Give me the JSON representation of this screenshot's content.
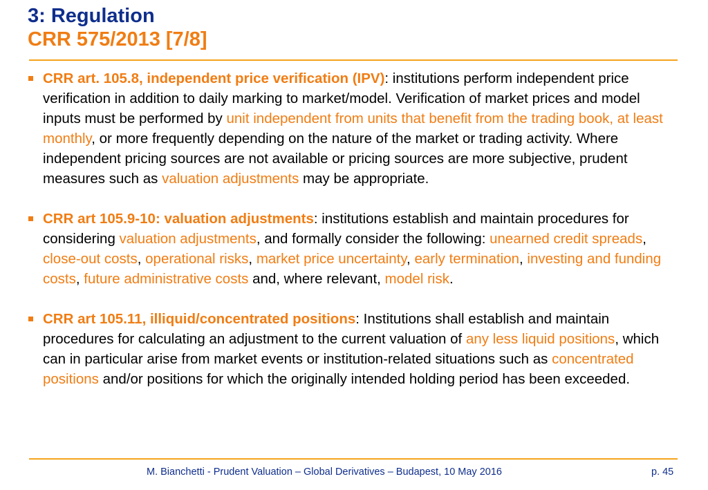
{
  "header": {
    "title": "3: Regulation",
    "subtitle": "CRR 575/2013 [7/8]"
  },
  "bullets": [
    {
      "parts": [
        {
          "text": "CRR art. 105.8, independent price verification (IPV)",
          "style": "bold-orange"
        },
        {
          "text": ": institutions perform independent price verification in addition to daily marking to market/model. Verification of market prices and model inputs must be performed by ",
          "style": "normal"
        },
        {
          "text": "unit independent from units that benefit from the trading book, at least monthly",
          "style": "orange"
        },
        {
          "text": ", or more frequently depending on the nature of the market or trading activity. Where independent pricing sources are not available or pricing sources are more subjective, prudent measures such as ",
          "style": "normal"
        },
        {
          "text": "valuation adjustments",
          "style": "orange"
        },
        {
          "text": " may be appropriate.",
          "style": "normal"
        }
      ]
    },
    {
      "parts": [
        {
          "text": "CRR art 105.9-10: valuation adjustments",
          "style": "bold-orange"
        },
        {
          "text": ": institutions establish and maintain procedures for considering ",
          "style": "normal"
        },
        {
          "text": "valuation adjustments",
          "style": "orange"
        },
        {
          "text": ", and formally consider the following: ",
          "style": "normal"
        },
        {
          "text": "unearned credit spreads",
          "style": "orange"
        },
        {
          "text": ", ",
          "style": "normal"
        },
        {
          "text": "close-out costs",
          "style": "orange"
        },
        {
          "text": ", ",
          "style": "normal"
        },
        {
          "text": "operational risks",
          "style": "orange"
        },
        {
          "text": ", ",
          "style": "normal"
        },
        {
          "text": "market price uncertainty",
          "style": "orange"
        },
        {
          "text": ", ",
          "style": "normal"
        },
        {
          "text": "early termination",
          "style": "orange"
        },
        {
          "text": ", ",
          "style": "normal"
        },
        {
          "text": "investing and funding costs",
          "style": "orange"
        },
        {
          "text": ", ",
          "style": "normal"
        },
        {
          "text": "future administrative costs",
          "style": "orange"
        },
        {
          "text": " and, where relevant, ",
          "style": "normal"
        },
        {
          "text": "model risk",
          "style": "orange"
        },
        {
          "text": ".",
          "style": "normal"
        }
      ]
    },
    {
      "parts": [
        {
          "text": "CRR art 105.11, illiquid/concentrated positions",
          "style": "bold-orange"
        },
        {
          "text": ": Institutions shall establish and maintain procedures for calculating an adjustment to the current valuation of ",
          "style": "normal"
        },
        {
          "text": "any less liquid positions",
          "style": "orange"
        },
        {
          "text": ", which can in particular arise from market events or institution-related situations such as ",
          "style": "normal"
        },
        {
          "text": "concentrated positions",
          "style": "orange"
        },
        {
          "text": " and/or positions for which the originally intended holding period has been exceeded.",
          "style": "normal"
        }
      ]
    }
  ],
  "footer": {
    "text": "M. Bianchetti - Prudent Valuation – Global Derivatives – Budapest, 10 May 2016",
    "page": "p. 45"
  },
  "colors": {
    "title": "#0f2e8c",
    "accent": "#f07d14",
    "rule": "#f5a31a",
    "body_text": "#000000"
  }
}
